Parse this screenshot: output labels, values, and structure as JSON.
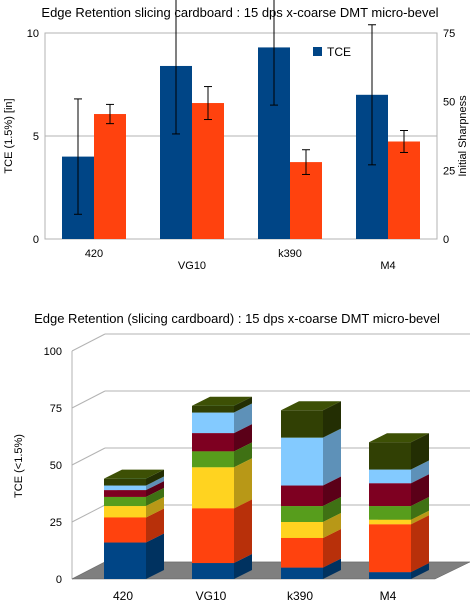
{
  "chart_data": [
    {
      "type": "bar",
      "title": "Edge Retention slicing  cardboard : 15 dps x-coarse DMT micro-bevel",
      "categories": [
        "420",
        "VG10",
        "k390",
        "M4"
      ],
      "ylabel": "TCE (1.5%) [in]",
      "y2label": "Initial Sharpness",
      "ylim": [
        0,
        10
      ],
      "y2lim": [
        0,
        75
      ],
      "yticks": [
        "0",
        "5",
        "10"
      ],
      "y2ticks": [
        "0",
        "25",
        "50",
        "75"
      ],
      "grid": true,
      "legend": {
        "position": "top-right",
        "label": "TCE"
      },
      "series": [
        {
          "name": "TCE",
          "axis": "left",
          "color": "#004586",
          "values": [
            4.0,
            8.4,
            9.3,
            7.0
          ],
          "errors": [
            2.8,
            3.3,
            2.8,
            3.4
          ]
        },
        {
          "axis": "right",
          "color": "#ff420e",
          "values": [
            45.5,
            49.5,
            28,
            35.5
          ],
          "errors": [
            3.5,
            6,
            4.5,
            4
          ]
        }
      ]
    },
    {
      "type": "bar",
      "stacked": true,
      "title": "Edge Retention (slicing cardboard) : 15 dps x-coarse  DMT micro-bevel",
      "categories": [
        "420",
        "VG10",
        "k390",
        "M4"
      ],
      "ylabel": "TCE (<1.5%)",
      "ylim": [
        0,
        100
      ],
      "yticks": [
        "0",
        "25",
        "50",
        "75",
        "100"
      ],
      "grid": true,
      "series": [
        {
          "color": "#004586",
          "values": [
            16,
            7,
            5,
            3
          ]
        },
        {
          "color": "#ff420e",
          "values": [
            11,
            24,
            13,
            21
          ]
        },
        {
          "color": "#ffd320",
          "values": [
            5,
            18,
            7,
            2
          ]
        },
        {
          "color": "#579d1c",
          "values": [
            4,
            7,
            7,
            6
          ]
        },
        {
          "color": "#7e0021",
          "values": [
            3,
            8,
            9,
            10
          ]
        },
        {
          "color": "#83caff",
          "values": [
            2,
            9,
            21,
            6
          ]
        },
        {
          "color": "#314004",
          "values": [
            3,
            3,
            12,
            12
          ]
        }
      ]
    }
  ]
}
